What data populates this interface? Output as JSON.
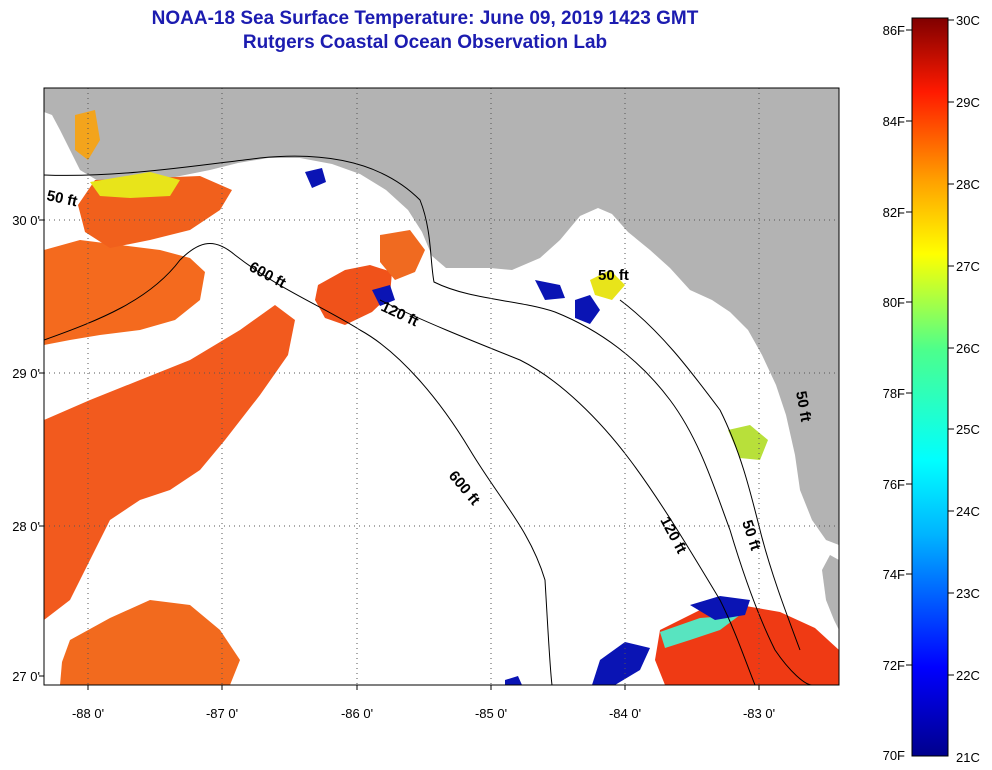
{
  "title_line1": "NOAA-18 Sea Surface Temperature:  June 09, 2019 1423 GMT",
  "title_line2": "Rutgers Coastal Ocean Observation Lab",
  "map": {
    "lat_labels": [
      "30 0'",
      "29 0'",
      "28 0'",
      "27 0'"
    ],
    "lon_labels": [
      "-88 0'",
      "-87 0'",
      "-86 0'",
      "-85 0'",
      "-84 0'",
      "-83 0'"
    ],
    "contour_labels": [
      "50 ft",
      "600 ft",
      "120 ft",
      "50 ft",
      "600 ft",
      "120 ft",
      "50 ft",
      "50 ft"
    ],
    "colors": {
      "land": "#b3b3b3",
      "clouds": "#ffffff",
      "warm": "#f2521c",
      "cool": "#0a14b4",
      "grid": "#555555"
    }
  },
  "colorbar": {
    "fahrenheit": [
      "86F",
      "84F",
      "82F",
      "80F",
      "78F",
      "76F",
      "74F",
      "72F",
      "70F"
    ],
    "celsius": [
      "30C",
      "29C",
      "28C",
      "27C",
      "26C",
      "25C",
      "24C",
      "23C",
      "22C",
      "21C"
    ]
  }
}
